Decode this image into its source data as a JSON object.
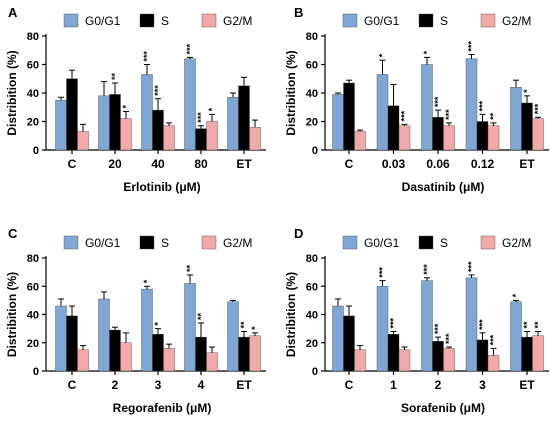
{
  "colors": {
    "G0/G1": "#7fa7d6",
    "S": "#000000",
    "G2/M": "#f2a9a9"
  },
  "chart_data": [
    {
      "panel": "A",
      "type": "bar",
      "xlabel": "Erlotinib (μM)",
      "ylabel": "Distribition (%)",
      "ylim": [
        0,
        80
      ],
      "yticks": [
        0,
        20,
        40,
        60,
        80
      ],
      "legend": [
        "G0/G1",
        "S",
        "G2/M"
      ],
      "legend_position": "top",
      "categories": [
        "C",
        "20",
        "40",
        "80",
        "ET"
      ],
      "series": [
        {
          "name": "G0/G1",
          "values": [
            35,
            38,
            53,
            64,
            37
          ],
          "errors": [
            2,
            10,
            7,
            1,
            3
          ],
          "sig": [
            "",
            "",
            "***",
            "***",
            ""
          ]
        },
        {
          "name": "S",
          "values": [
            50,
            39,
            28,
            15,
            45
          ],
          "errors": [
            6,
            8,
            8,
            2,
            6
          ],
          "sig": [
            "",
            "**",
            "***",
            "***",
            ""
          ]
        },
        {
          "name": "G2/M",
          "values": [
            13,
            22,
            17,
            20,
            16
          ],
          "errors": [
            5,
            5,
            2,
            5,
            5
          ],
          "sig": [
            "",
            "*",
            "",
            "*",
            ""
          ]
        }
      ]
    },
    {
      "panel": "B",
      "type": "bar",
      "xlabel": "Dasatinib (μM)",
      "ylabel": "Distribition (%)",
      "ylim": [
        0,
        80
      ],
      "yticks": [
        0,
        20,
        40,
        60,
        80
      ],
      "legend": [
        "G0/G1",
        "S",
        "G2/M"
      ],
      "legend_position": "top",
      "categories": [
        "C",
        "0.03",
        "0.06",
        "0.12",
        "ET"
      ],
      "series": [
        {
          "name": "G0/G1",
          "values": [
            39,
            53,
            60,
            64,
            44
          ],
          "errors": [
            1,
            10,
            5,
            3,
            5
          ],
          "sig": [
            "",
            "*",
            "*",
            "***",
            ""
          ]
        },
        {
          "name": "S",
          "values": [
            47,
            31,
            23,
            20,
            33
          ],
          "errors": [
            2,
            15,
            5,
            5,
            5
          ],
          "sig": [
            "",
            "",
            "***",
            "***",
            "*"
          ]
        },
        {
          "name": "G2/M",
          "values": [
            13,
            17,
            17,
            17,
            22
          ],
          "errors": [
            1,
            1,
            2,
            2,
            1
          ],
          "sig": [
            "",
            "***",
            "***",
            "**",
            "***"
          ]
        }
      ]
    },
    {
      "panel": "C",
      "type": "bar",
      "xlabel": "Regorafenib (μM)",
      "ylabel": "Distribition (%)",
      "ylim": [
        0,
        80
      ],
      "yticks": [
        0,
        20,
        40,
        60,
        80
      ],
      "legend": [
        "G0/G1",
        "S",
        "G2/M"
      ],
      "legend_position": "top",
      "categories": [
        "C",
        "2",
        "3",
        "4",
        "ET"
      ],
      "series": [
        {
          "name": "G0/G1",
          "values": [
            46,
            51,
            58,
            62,
            49
          ],
          "errors": [
            5,
            5,
            2,
            6,
            1
          ],
          "sig": [
            "",
            "",
            "*",
            "**",
            ""
          ]
        },
        {
          "name": "S",
          "values": [
            39,
            29,
            26,
            24,
            24
          ],
          "errors": [
            7,
            2,
            4,
            10,
            4
          ],
          "sig": [
            "",
            "",
            "*",
            "**",
            "**"
          ]
        },
        {
          "name": "G2/M",
          "values": [
            15,
            20,
            16,
            13,
            25
          ],
          "errors": [
            3,
            7,
            3,
            4,
            2
          ],
          "sig": [
            "",
            "",
            "",
            "",
            "*"
          ]
        }
      ]
    },
    {
      "panel": "D",
      "type": "bar",
      "xlabel": "Sorafenib (μM)",
      "ylabel": "Distribition (%)",
      "ylim": [
        0,
        80
      ],
      "yticks": [
        0,
        20,
        40,
        60,
        80
      ],
      "legend": [
        "G0/G1",
        "S",
        "G2/M"
      ],
      "legend_position": "top",
      "categories": [
        "C",
        "1",
        "2",
        "3",
        "ET"
      ],
      "series": [
        {
          "name": "G0/G1",
          "values": [
            46,
            60,
            64,
            66,
            49
          ],
          "errors": [
            5,
            4,
            2,
            2,
            1
          ],
          "sig": [
            "",
            "***",
            "***",
            "***",
            "*"
          ]
        },
        {
          "name": "S",
          "values": [
            39,
            26,
            21,
            22,
            24
          ],
          "errors": [
            7,
            2,
            3,
            5,
            4
          ],
          "sig": [
            "",
            "***",
            "***",
            "***",
            "**"
          ]
        },
        {
          "name": "G2/M",
          "values": [
            15,
            15,
            16,
            11,
            25
          ],
          "errors": [
            3,
            2,
            1,
            5,
            3
          ],
          "sig": [
            "",
            "",
            "***",
            "***",
            "**"
          ]
        }
      ]
    }
  ]
}
